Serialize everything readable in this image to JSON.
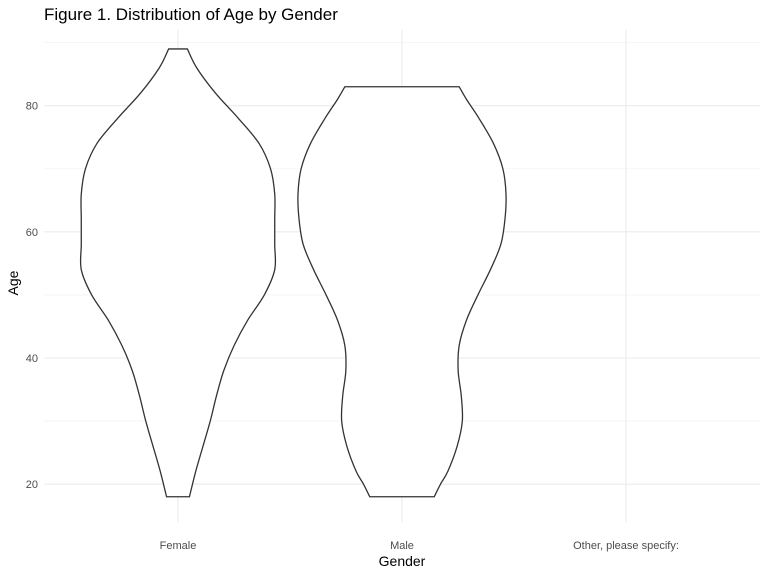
{
  "chart_data": {
    "type": "violin",
    "title": "Figure 1. Distribution of Age by Gender",
    "xlabel": "Gender",
    "ylabel": "Age",
    "categories": [
      "Female",
      "Male",
      "Other, please specify:"
    ],
    "y_ticks": [
      20,
      40,
      60,
      80
    ],
    "ylim": [
      14,
      92
    ],
    "grid": true,
    "colors": {
      "outline": "#333333",
      "fill": "#ffffff",
      "grid": "#ebebeb"
    },
    "series": [
      {
        "category": "Female",
        "min": 18,
        "max": 89,
        "density_profile": [
          [
            18,
            0.11
          ],
          [
            22,
            0.17
          ],
          [
            26,
            0.24
          ],
          [
            30,
            0.31
          ],
          [
            34,
            0.37
          ],
          [
            38,
            0.44
          ],
          [
            42,
            0.54
          ],
          [
            46,
            0.67
          ],
          [
            50,
            0.83
          ],
          [
            54,
            0.93
          ],
          [
            58,
            0.93
          ],
          [
            62,
            0.93
          ],
          [
            66,
            0.93
          ],
          [
            70,
            0.89
          ],
          [
            74,
            0.78
          ],
          [
            78,
            0.58
          ],
          [
            82,
            0.36
          ],
          [
            86,
            0.18
          ],
          [
            89,
            0.09
          ]
        ]
      },
      {
        "category": "Male",
        "min": 18,
        "max": 83,
        "density_profile": [
          [
            18,
            0.31
          ],
          [
            20,
            0.37
          ],
          [
            22,
            0.44
          ],
          [
            26,
            0.53
          ],
          [
            30,
            0.58
          ],
          [
            34,
            0.57
          ],
          [
            38,
            0.54
          ],
          [
            42,
            0.55
          ],
          [
            46,
            0.62
          ],
          [
            50,
            0.73
          ],
          [
            54,
            0.85
          ],
          [
            58,
            0.95
          ],
          [
            62,
            0.99
          ],
          [
            66,
            1.0
          ],
          [
            70,
            0.97
          ],
          [
            74,
            0.88
          ],
          [
            78,
            0.74
          ],
          [
            81,
            0.62
          ],
          [
            83,
            0.55
          ]
        ]
      },
      {
        "category": "Other, please specify:",
        "min": null,
        "max": null,
        "density_profile": []
      }
    ]
  }
}
